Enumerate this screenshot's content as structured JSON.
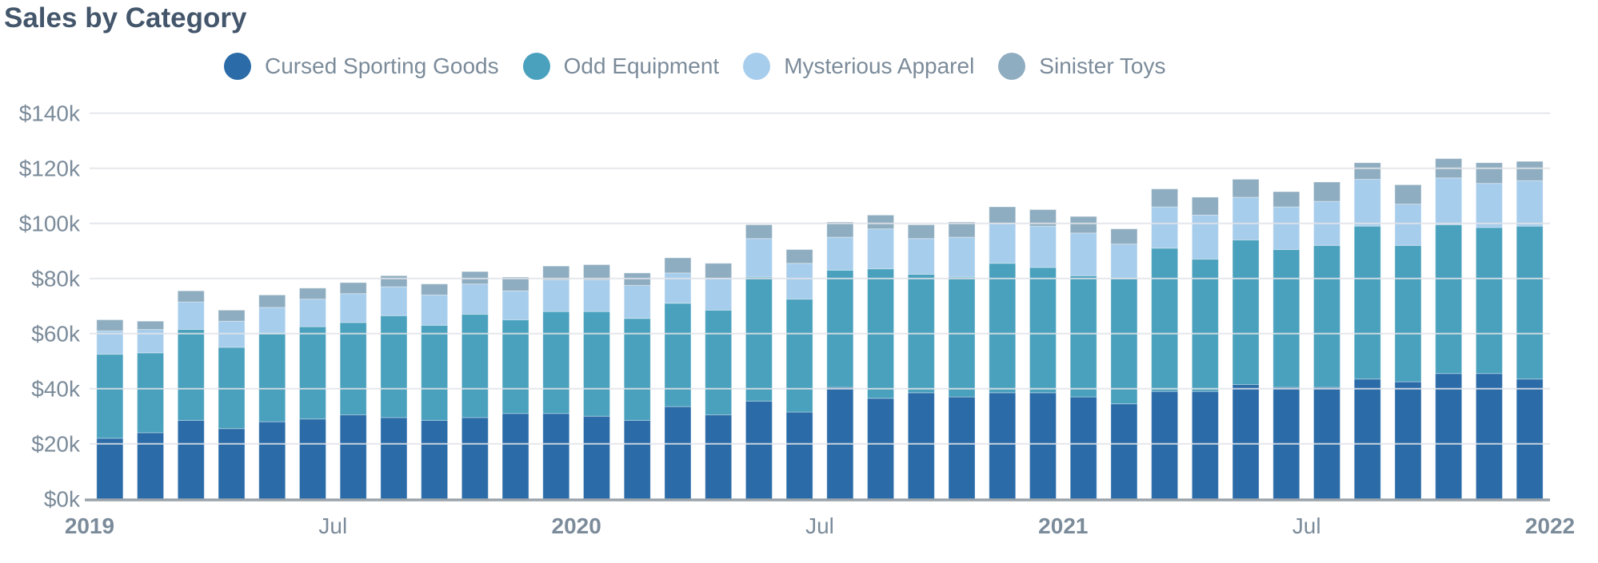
{
  "title": "Sales by Category",
  "colors": {
    "title_text": "#44566b",
    "axis_text": "#7b8b9a",
    "gridline": "#e0e3e9",
    "axis_line": "#9aa3ab",
    "background": "#ffffff"
  },
  "chart_data": {
    "type": "bar",
    "stacked": true,
    "title": "Sales by Category",
    "xlabel": "",
    "ylabel": "",
    "y_unit_format": "$Nk",
    "ylim": [
      0,
      140
    ],
    "grid": true,
    "legend_position": "top",
    "y_tick_labels": [
      "$0k",
      "$20k",
      "$40k",
      "$60k",
      "$80k",
      "$100k",
      "$120k",
      "$140k"
    ],
    "y_tick_values": [
      0,
      20,
      40,
      60,
      80,
      100,
      120,
      140
    ],
    "x_axis_ticks": [
      {
        "index": 0,
        "label": "2019",
        "bold": true
      },
      {
        "index": 6,
        "label": "Jul",
        "bold": false
      },
      {
        "index": 12,
        "label": "2020",
        "bold": true
      },
      {
        "index": 18,
        "label": "Jul",
        "bold": false
      },
      {
        "index": 24,
        "label": "2021",
        "bold": true
      },
      {
        "index": 30,
        "label": "Jul",
        "bold": false
      },
      {
        "index": 36,
        "label": "2022",
        "bold": true
      }
    ],
    "x": [
      "Jan 2019",
      "Feb 2019",
      "Mar 2019",
      "Apr 2019",
      "May 2019",
      "Jun 2019",
      "Jul 2019",
      "Aug 2019",
      "Sep 2019",
      "Oct 2019",
      "Nov 2019",
      "Dec 2019",
      "Jan 2020",
      "Feb 2020",
      "Mar 2020",
      "Apr 2020",
      "May 2020",
      "Jun 2020",
      "Jul 2020",
      "Aug 2020",
      "Sep 2020",
      "Oct 2020",
      "Nov 2020",
      "Dec 2020",
      "Jan 2021",
      "Feb 2021",
      "Mar 2021",
      "Apr 2021",
      "May 2021",
      "Jun 2021",
      "Jul 2021",
      "Aug 2021",
      "Sep 2021",
      "Oct 2021",
      "Nov 2021",
      "Dec 2021"
    ],
    "value_unit": "thousands of dollars",
    "series": [
      {
        "name": "Cursed Sporting Goods",
        "color": "#2a6ba8",
        "values": [
          22,
          24,
          28.5,
          25.5,
          28,
          29,
          30.5,
          29.5,
          28.5,
          29.5,
          31,
          31,
          30,
          28.5,
          33.5,
          30.5,
          35.5,
          31.5,
          40.5,
          36.5,
          38.5,
          37,
          38.5,
          38.5,
          37,
          34.5,
          39,
          39,
          41.5,
          40.5,
          40.5,
          43.5,
          42.5,
          45.5,
          45.5,
          43.5
        ]
      },
      {
        "name": "Odd Equipment",
        "color": "#4aa1bd",
        "values": [
          30.5,
          29,
          33,
          29.5,
          32,
          33.5,
          33.5,
          37,
          34.5,
          37.5,
          34,
          37,
          38,
          37,
          37.5,
          38,
          45,
          41,
          42.5,
          47,
          43,
          43.5,
          47,
          45.5,
          44,
          45.5,
          52,
          48,
          52.5,
          50,
          51.5,
          55.5,
          49.5,
          54,
          53,
          55.5
        ]
      },
      {
        "name": "Mysterious Apparel",
        "color": "#a7cdec",
        "values": [
          8.5,
          8.5,
          10,
          9.5,
          9.5,
          10,
          10.5,
          10.5,
          11,
          11,
          10.5,
          11.5,
          11.5,
          12,
          11,
          11.5,
          14,
          13,
          12,
          14.5,
          13,
          14.5,
          14.5,
          15,
          15.5,
          12.5,
          15,
          16,
          15.5,
          15.5,
          16,
          17,
          15,
          17,
          16,
          16.5
        ]
      },
      {
        "name": "Sinister Toys",
        "color": "#8fadc0",
        "values": [
          4,
          3,
          4,
          4,
          4.5,
          4,
          4,
          4,
          4,
          4.5,
          5,
          5,
          5.5,
          4.5,
          5.5,
          5.5,
          5,
          5,
          5.5,
          5,
          5,
          5.5,
          6,
          6,
          6,
          5.5,
          6.5,
          6.5,
          6.5,
          5.5,
          7,
          6,
          7,
          7,
          7.5,
          7
        ]
      }
    ]
  }
}
